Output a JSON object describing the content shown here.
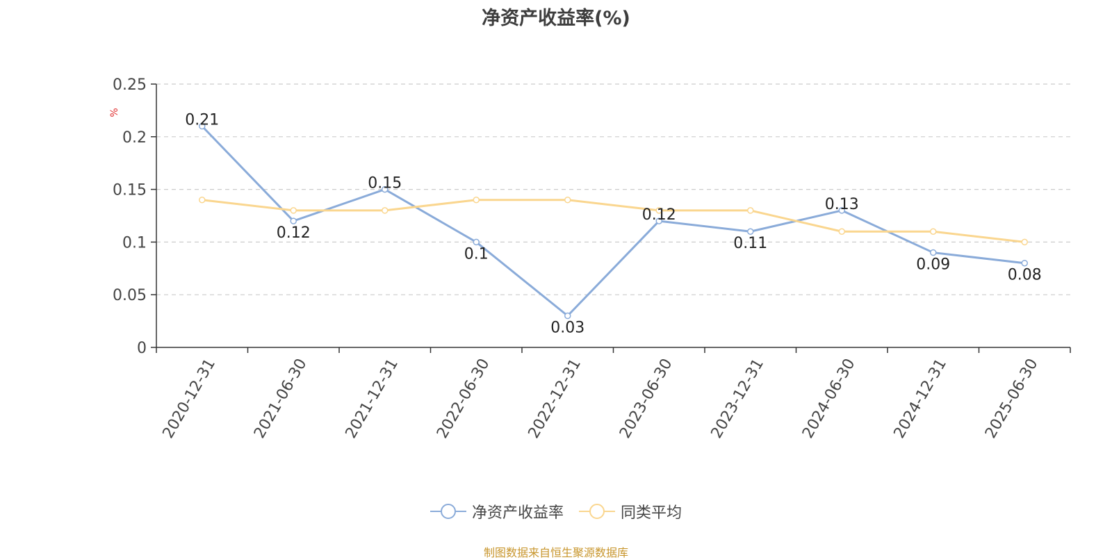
{
  "chart_data": {
    "type": "line",
    "title": "净资产收益率(%)",
    "ylabel": "%",
    "categories": [
      "2020-12-31",
      "2021-06-30",
      "2021-12-31",
      "2022-06-30",
      "2022-12-31",
      "2023-06-30",
      "2023-12-31",
      "2024-06-30",
      "2024-12-31",
      "2025-06-30"
    ],
    "ylim": [
      0,
      0.25
    ],
    "yticks": [
      0,
      0.05,
      0.1,
      0.15,
      0.2,
      0.25
    ],
    "ytick_labels": [
      "0",
      "0.05",
      "0.1",
      "0.15",
      "0.2",
      "0.25"
    ],
    "grid": true,
    "legend_position": "bottom",
    "series": [
      {
        "name": "净资产收益率",
        "color": "#8aabd9",
        "values": [
          0.21,
          0.12,
          0.15,
          0.1,
          0.03,
          0.12,
          0.11,
          0.13,
          0.09,
          0.08
        ],
        "labels": [
          "0.21",
          "0.12",
          "0.15",
          "0.1",
          "0.03",
          "0.12",
          "0.11",
          "0.13",
          "0.09",
          "0.08"
        ]
      },
      {
        "name": "同类平均",
        "color": "#fad68f",
        "values": [
          0.14,
          0.13,
          0.13,
          0.14,
          0.14,
          0.13,
          0.13,
          0.11,
          0.11,
          0.1
        ]
      }
    ]
  },
  "footer": "制图数据来自恒生聚源数据库"
}
